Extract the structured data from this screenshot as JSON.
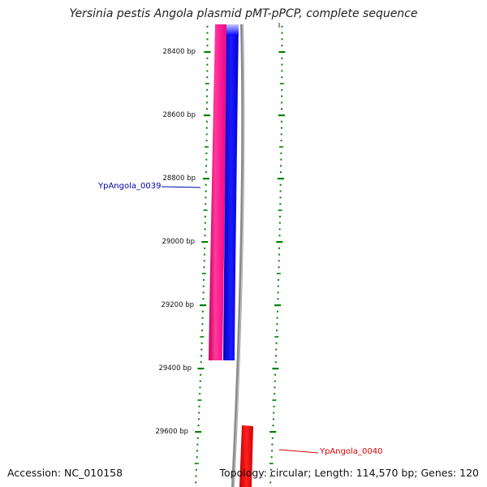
{
  "title": "Yersinia pestis Angola plasmid pMT-pPCP, complete sequence",
  "footer": {
    "accession": "Accession: NC_010158",
    "summary": "Topology: circular; Length: 114,570 bp; Genes: 120"
  },
  "scale": {
    "unit": "bp",
    "ticks": [
      {
        "bp": 28400,
        "label": "28400 bp"
      },
      {
        "bp": 28600,
        "label": "28600 bp"
      },
      {
        "bp": 28800,
        "label": "28800 bp"
      },
      {
        "bp": 29000,
        "label": "29000 bp"
      },
      {
        "bp": 29200,
        "label": "29200 bp"
      },
      {
        "bp": 29400,
        "label": "29400 bp"
      },
      {
        "bp": 29600,
        "label": "29600 bp"
      }
    ]
  },
  "genes": [
    {
      "name": "YpAngola_0039",
      "color": "#0000aa"
    },
    {
      "name": "YpAngola_0040",
      "color": "#dd0000"
    }
  ],
  "colors": {
    "gene_forward": "#ff1493",
    "cds": "#0000ff",
    "backbone": "#808080",
    "feature_reverse": "#ff0000",
    "tick": "#008000"
  }
}
